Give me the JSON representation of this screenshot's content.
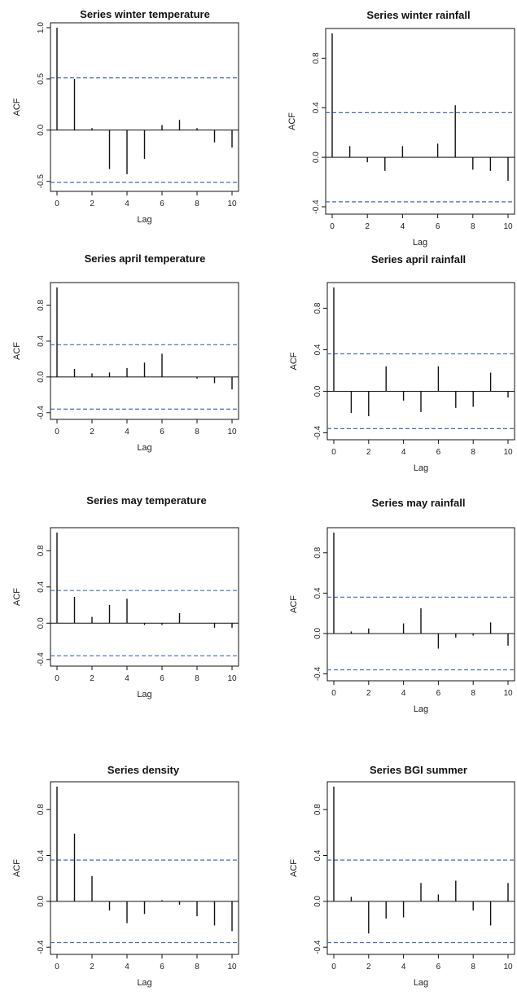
{
  "chart_data": [
    {
      "type": "bar",
      "title": "Series winter temperature",
      "xlabel": "Lag",
      "ylabel": "ACF",
      "xlim": [
        0,
        10
      ],
      "ylim": [
        -0.55,
        1.0
      ],
      "yticks": [
        "1.0",
        "0.5",
        "0.0",
        "-0.5"
      ],
      "ytick_values": [
        1.0,
        0.5,
        0.0,
        -0.5
      ],
      "xticks": [
        "0",
        "2",
        "4",
        "6",
        "8",
        "10"
      ],
      "lags": [
        0,
        1,
        2,
        3,
        4,
        5,
        6,
        7,
        8,
        9,
        10
      ],
      "values": [
        1.0,
        0.5,
        0.02,
        -0.38,
        -0.43,
        -0.28,
        0.05,
        0.1,
        0.02,
        -0.12,
        -0.17
      ],
      "confidence_band": 0.51,
      "colors": {
        "bars": "#111111",
        "band": "#4a66c0"
      }
    },
    {
      "type": "bar",
      "title": "Series winter rainfall",
      "xlabel": "Lag",
      "ylabel": "ACF",
      "xlim": [
        0,
        10
      ],
      "ylim": [
        -0.42,
        1.0
      ],
      "yticks": [
        "0.8",
        "0.4",
        "0.0",
        "-0.4"
      ],
      "ytick_values": [
        0.8,
        0.4,
        0.0,
        -0.4
      ],
      "xticks": [
        "0",
        "2",
        "4",
        "6",
        "8",
        "10"
      ],
      "lags": [
        0,
        1,
        2,
        3,
        4,
        5,
        6,
        7,
        8,
        9,
        10
      ],
      "values": [
        1.0,
        0.09,
        -0.04,
        -0.11,
        0.09,
        0.0,
        0.11,
        0.42,
        -0.1,
        -0.11,
        -0.19
      ],
      "confidence_band": 0.36,
      "colors": {
        "bars": "#111111",
        "band": "#4a66c0"
      }
    },
    {
      "type": "bar",
      "title": "Series april temperature",
      "xlabel": "Lag",
      "ylabel": "ACF",
      "xlim": [
        0,
        10
      ],
      "ylim": [
        -0.42,
        1.0
      ],
      "yticks": [
        "0.8",
        "0.4",
        "0.0",
        "-0.4"
      ],
      "ytick_values": [
        0.8,
        0.4,
        0.0,
        -0.4
      ],
      "xticks": [
        "0",
        "2",
        "4",
        "6",
        "8",
        "10"
      ],
      "lags": [
        0,
        1,
        2,
        3,
        4,
        5,
        6,
        7,
        8,
        9,
        10
      ],
      "values": [
        1.0,
        0.09,
        0.04,
        0.05,
        0.1,
        0.16,
        0.26,
        0.0,
        -0.02,
        -0.07,
        -0.14
      ],
      "confidence_band": 0.36,
      "colors": {
        "bars": "#111111",
        "band": "#4a66c0"
      }
    },
    {
      "type": "bar",
      "title": "Series april rainfall",
      "xlabel": "Lag",
      "ylabel": "ACF",
      "xlim": [
        0,
        10
      ],
      "ylim": [
        -0.42,
        1.0
      ],
      "yticks": [
        "0.8",
        "0.4",
        "0.0",
        "-0.4"
      ],
      "ytick_values": [
        0.8,
        0.4,
        0.0,
        -0.4
      ],
      "xticks": [
        "0",
        "2",
        "4",
        "6",
        "8",
        "10"
      ],
      "lags": [
        0,
        1,
        2,
        3,
        4,
        5,
        6,
        7,
        8,
        9,
        10
      ],
      "values": [
        1.0,
        -0.21,
        -0.24,
        0.24,
        -0.09,
        -0.2,
        0.24,
        -0.16,
        -0.15,
        0.18,
        -0.06
      ],
      "confidence_band": 0.36,
      "colors": {
        "bars": "#111111",
        "band": "#4a66c0"
      }
    },
    {
      "type": "bar",
      "title": "Series may temperature",
      "xlabel": "Lag",
      "ylabel": "ACF",
      "xlim": [
        0,
        10
      ],
      "ylim": [
        -0.42,
        1.0
      ],
      "yticks": [
        "0.8",
        "0.4",
        "0.0",
        "-0.4"
      ],
      "ytick_values": [
        0.8,
        0.4,
        0.0,
        -0.4
      ],
      "xticks": [
        "0",
        "2",
        "4",
        "6",
        "8",
        "10"
      ],
      "lags": [
        0,
        1,
        2,
        3,
        4,
        5,
        6,
        7,
        8,
        9,
        10
      ],
      "values": [
        1.0,
        0.29,
        0.07,
        0.2,
        0.27,
        -0.02,
        -0.02,
        0.11,
        0.0,
        -0.05,
        -0.05
      ],
      "confidence_band": 0.36,
      "colors": {
        "bars": "#111111",
        "band": "#4a66c0"
      }
    },
    {
      "type": "bar",
      "title": "Series may rainfall",
      "xlabel": "Lag",
      "ylabel": "ACF",
      "xlim": [
        0,
        10
      ],
      "ylim": [
        -0.42,
        1.0
      ],
      "yticks": [
        "0.8",
        "0.4",
        "0.0",
        "-0.4"
      ],
      "ytick_values": [
        0.8,
        0.4,
        0.0,
        -0.4
      ],
      "xticks": [
        "0",
        "2",
        "4",
        "6",
        "8",
        "10"
      ],
      "lags": [
        0,
        1,
        2,
        3,
        4,
        5,
        6,
        7,
        8,
        9,
        10
      ],
      "values": [
        1.0,
        0.02,
        0.05,
        0.0,
        0.1,
        0.25,
        -0.15,
        -0.04,
        -0.02,
        0.11,
        -0.12
      ],
      "confidence_band": 0.36,
      "colors": {
        "bars": "#111111",
        "band": "#4a66c0"
      }
    },
    {
      "type": "bar",
      "title": "Series density",
      "xlabel": "Lag",
      "ylabel": "ACF",
      "xlim": [
        0,
        10
      ],
      "ylim": [
        -0.42,
        1.0
      ],
      "yticks": [
        "0.8",
        "0.4",
        "0.0",
        "-0.4"
      ],
      "ytick_values": [
        0.8,
        0.4,
        0.0,
        -0.4
      ],
      "xticks": [
        "0",
        "2",
        "4",
        "6",
        "8",
        "10"
      ],
      "lags": [
        0,
        1,
        2,
        3,
        4,
        5,
        6,
        7,
        8,
        9,
        10
      ],
      "values": [
        1.0,
        0.59,
        0.22,
        -0.08,
        -0.19,
        -0.11,
        0.01,
        -0.03,
        -0.13,
        -0.21,
        -0.26
      ],
      "confidence_band": 0.36,
      "colors": {
        "bars": "#111111",
        "band": "#4a66c0"
      }
    },
    {
      "type": "bar",
      "title": "Series BGI summer",
      "xlabel": "Lag",
      "ylabel": "ACF",
      "xlim": [
        0,
        10
      ],
      "ylim": [
        -0.42,
        1.0
      ],
      "yticks": [
        "0.8",
        "0.4",
        "0.0",
        "-0.4"
      ],
      "ytick_values": [
        0.8,
        0.4,
        0.0,
        -0.4
      ],
      "xticks": [
        "0",
        "2",
        "4",
        "6",
        "8",
        "10"
      ],
      "lags": [
        0,
        1,
        2,
        3,
        4,
        5,
        6,
        7,
        8,
        9,
        10
      ],
      "values": [
        1.0,
        0.04,
        -0.28,
        -0.15,
        -0.14,
        0.16,
        0.06,
        0.18,
        -0.08,
        -0.21,
        0.16
      ],
      "confidence_band": 0.36,
      "colors": {
        "bars": "#111111",
        "band": "#4a66c0"
      }
    }
  ]
}
